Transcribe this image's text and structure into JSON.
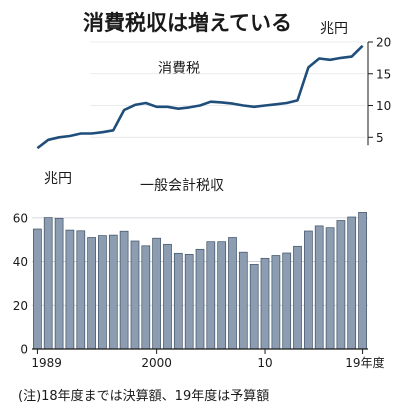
{
  "title": "消費税収は増えている",
  "note": "(注)18年度までは決算額、19年度は予算額",
  "chart_data": [
    {
      "type": "line",
      "title": "消費税",
      "unit": "兆円",
      "ylim": [
        3,
        20
      ],
      "yticks": [
        5,
        10,
        15,
        20
      ],
      "y_axis_position": "right",
      "x": [
        1989,
        1990,
        1991,
        1992,
        1993,
        1994,
        1995,
        1996,
        1997,
        1998,
        1999,
        2000,
        2001,
        2002,
        2003,
        2004,
        2005,
        2006,
        2007,
        2008,
        2009,
        2010,
        2011,
        2012,
        2013,
        2014,
        2015,
        2016,
        2017,
        2018,
        2019
      ],
      "values": [
        3.3,
        4.6,
        5.0,
        5.2,
        5.6,
        5.6,
        5.8,
        6.1,
        9.3,
        10.1,
        10.4,
        9.8,
        9.8,
        9.5,
        9.7,
        10.0,
        10.6,
        10.5,
        10.3,
        10.0,
        9.8,
        10.0,
        10.2,
        10.4,
        10.8,
        16.0,
        17.4,
        17.2,
        17.5,
        17.7,
        19.4
      ]
    },
    {
      "type": "bar",
      "title": "一般会計税収",
      "unit": "兆円",
      "ylim": [
        0,
        70
      ],
      "yticks": [
        0,
        20,
        40,
        60
      ],
      "x_tick_labels": [
        "1989",
        "2000",
        "10",
        "19年度"
      ],
      "x": [
        1989,
        1990,
        1991,
        1992,
        1993,
        1994,
        1995,
        1996,
        1997,
        1998,
        1999,
        2000,
        2001,
        2002,
        2003,
        2004,
        2005,
        2006,
        2007,
        2008,
        2009,
        2010,
        2011,
        2012,
        2013,
        2014,
        2015,
        2016,
        2017,
        2018,
        2019
      ],
      "values": [
        54.9,
        60.1,
        59.8,
        54.4,
        54.1,
        51.0,
        51.9,
        52.1,
        53.9,
        49.4,
        47.2,
        50.7,
        47.9,
        43.8,
        43.3,
        45.6,
        49.1,
        49.1,
        51.0,
        44.3,
        38.7,
        41.5,
        42.8,
        43.9,
        47.0,
        54.0,
        56.3,
        55.5,
        58.8,
        60.4,
        62.5
      ],
      "bar_color": "#8c9db2"
    }
  ]
}
